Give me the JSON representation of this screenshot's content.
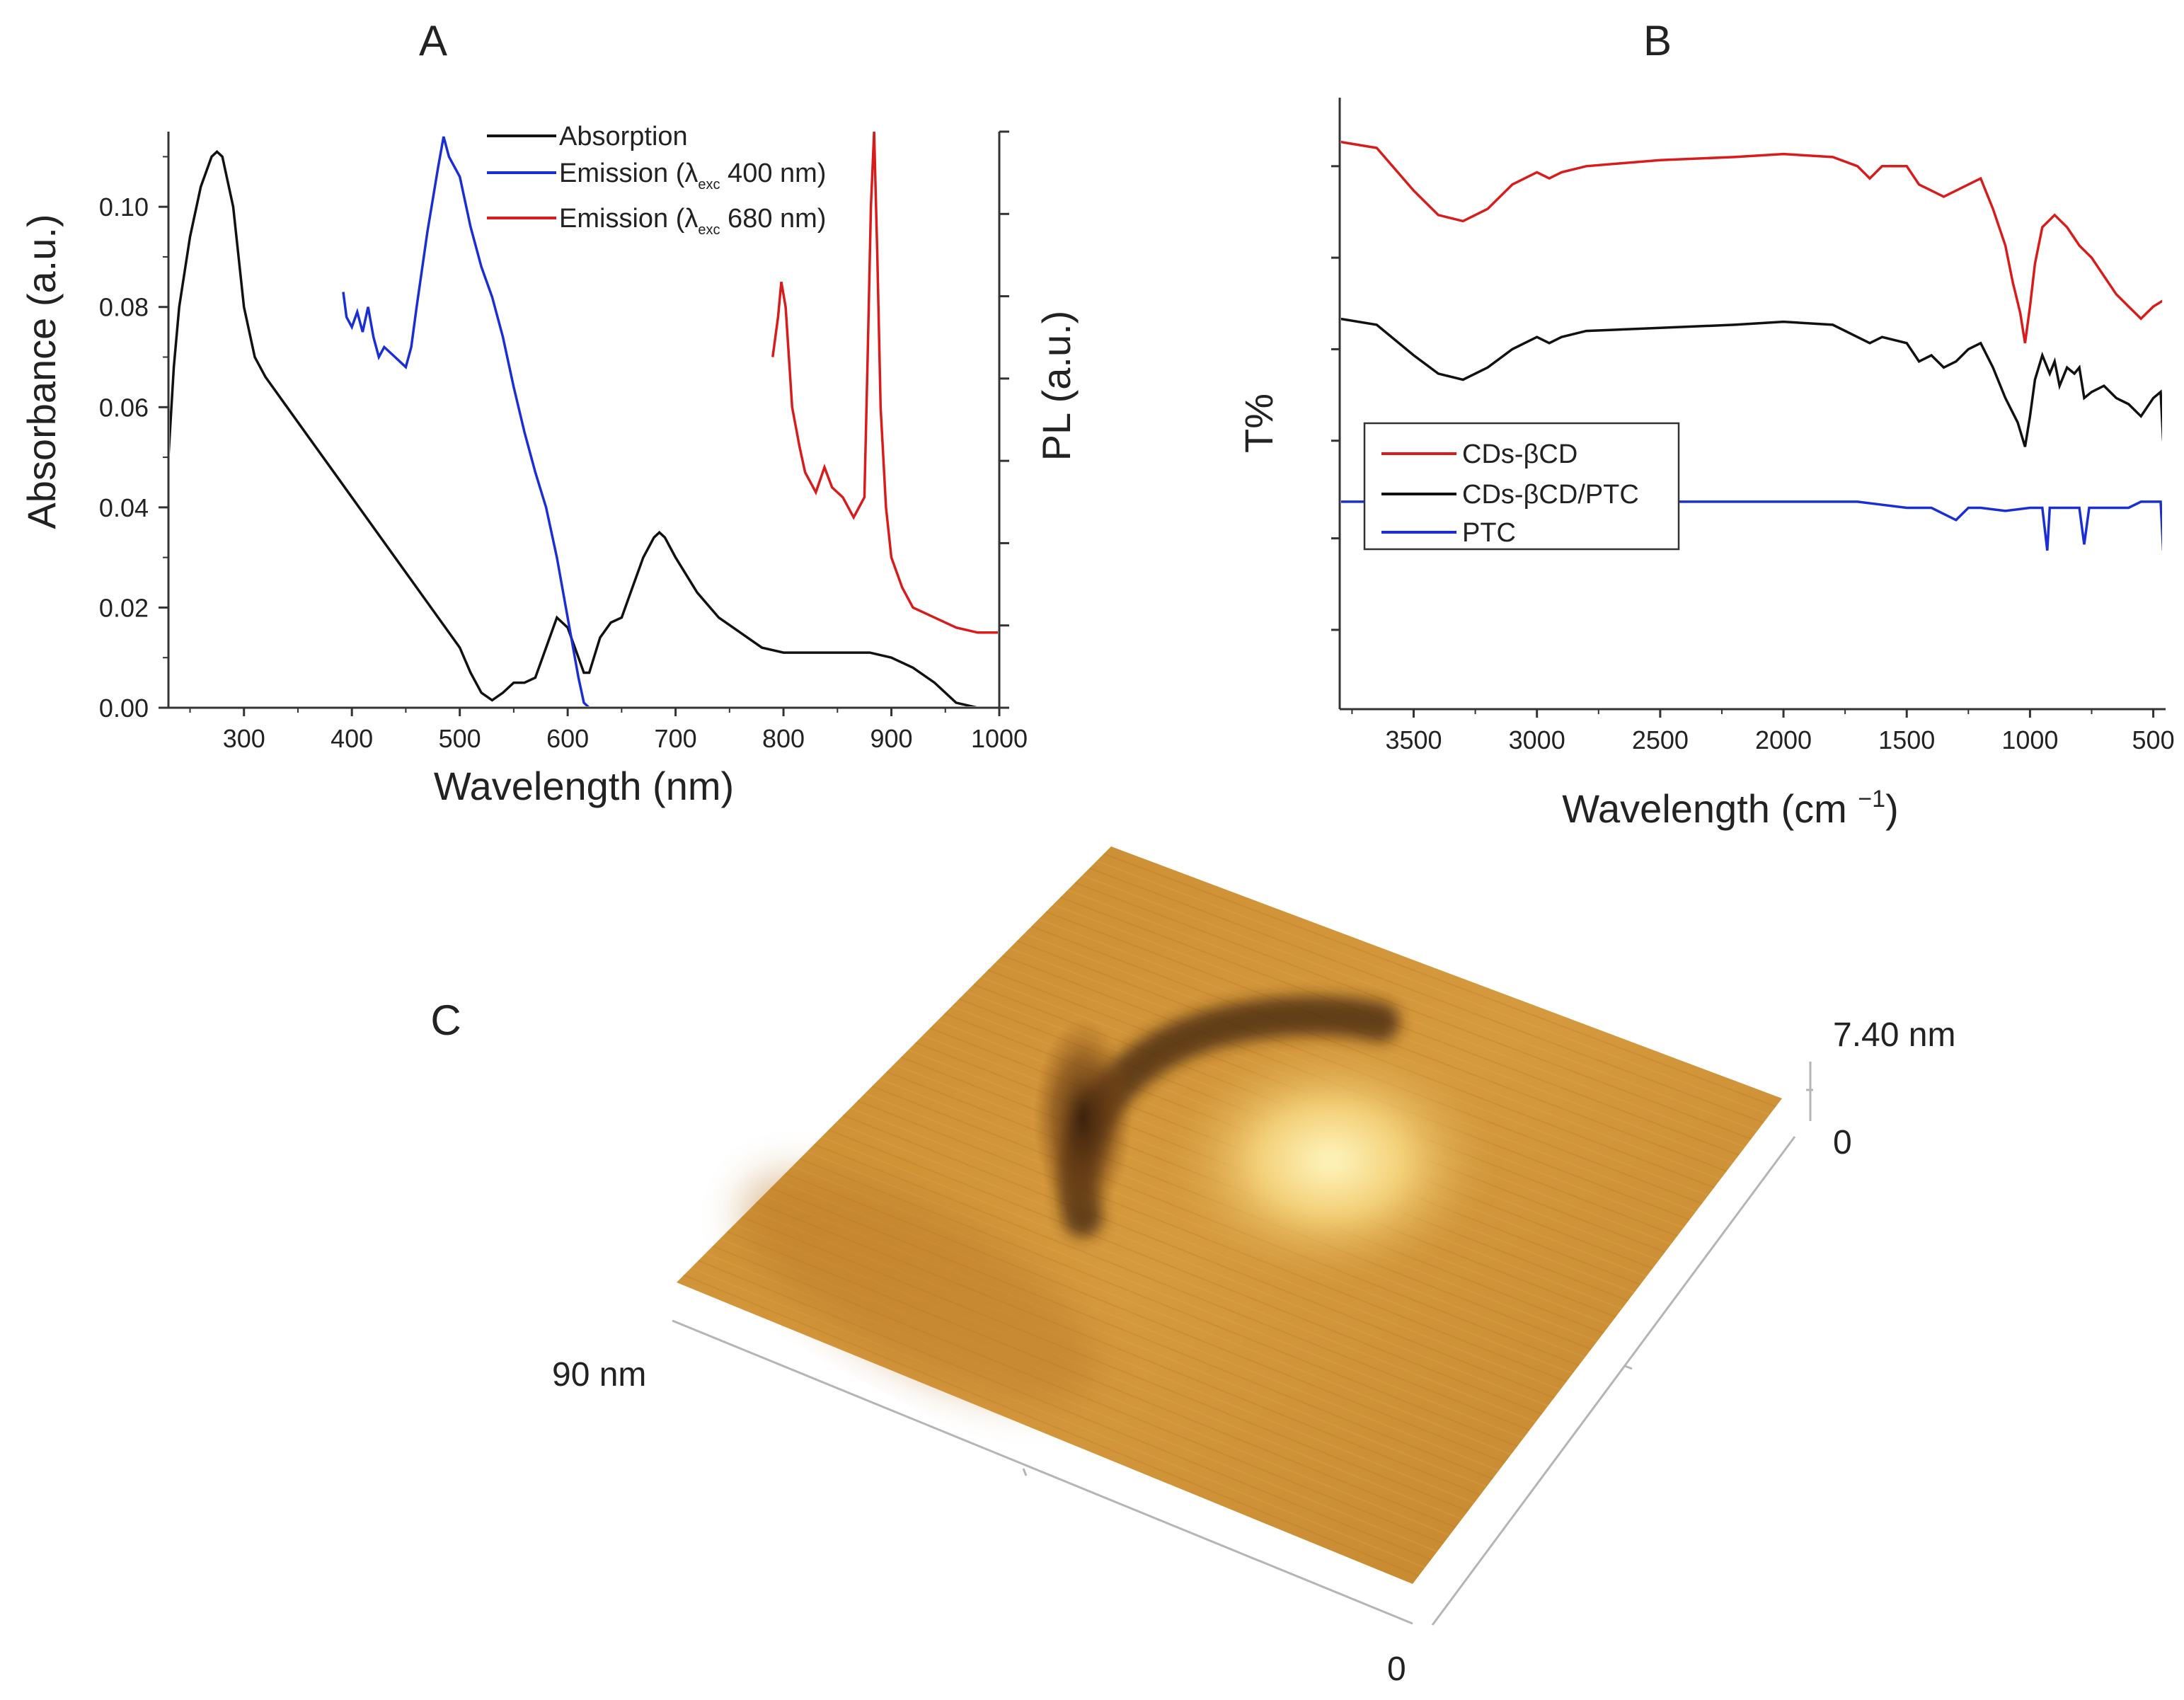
{
  "figure": {
    "panel_letters": {
      "a": "A",
      "b": "B",
      "c": "C"
    }
  },
  "chart_data": [
    {
      "id": "panel-a",
      "type": "line",
      "panel": "A",
      "xlabel": "Wavelength (nm)",
      "ylabel_left": "Absorbance (a.u.)",
      "ylabel_right": "PL (a.u.)",
      "xlim": [
        230,
        1000
      ],
      "ylim": [
        0,
        0.115
      ],
      "x_ticks": [
        300,
        400,
        500,
        600,
        700,
        800,
        900,
        1000
      ],
      "y_ticks": [
        0.0,
        0.02,
        0.04,
        0.06,
        0.08,
        0.1
      ],
      "y_tick_labels": [
        "0.00",
        "0.02",
        "0.04",
        "0.06",
        "0.08",
        "0.10"
      ],
      "grid": false,
      "legend_position": "top-center",
      "legend": {
        "absorption": "Absorption",
        "em400_prefix": "Emission (",
        "em400_suffix": " 400 nm)",
        "em680_prefix": "Emission (",
        "em680_suffix": " 680 nm)",
        "lambda": "λ",
        "lambda_sub": "exc"
      },
      "series": [
        {
          "name": "Absorption",
          "color": "#111111",
          "axis": "left",
          "points": [
            [
              230,
              0.05
            ],
            [
              235,
              0.068
            ],
            [
              240,
              0.08
            ],
            [
              250,
              0.094
            ],
            [
              260,
              0.104
            ],
            [
              270,
              0.11
            ],
            [
              275,
              0.111
            ],
            [
              280,
              0.11
            ],
            [
              290,
              0.1
            ],
            [
              300,
              0.08
            ],
            [
              310,
              0.07
            ],
            [
              320,
              0.066
            ],
            [
              340,
              0.06
            ],
            [
              360,
              0.054
            ],
            [
              380,
              0.048
            ],
            [
              400,
              0.042
            ],
            [
              420,
              0.036
            ],
            [
              440,
              0.03
            ],
            [
              460,
              0.024
            ],
            [
              480,
              0.018
            ],
            [
              500,
              0.012
            ],
            [
              510,
              0.007
            ],
            [
              520,
              0.003
            ],
            [
              530,
              0.0015
            ],
            [
              540,
              0.003
            ],
            [
              550,
              0.005
            ],
            [
              560,
              0.005
            ],
            [
              570,
              0.006
            ],
            [
              580,
              0.012
            ],
            [
              590,
              0.018
            ],
            [
              600,
              0.016
            ],
            [
              610,
              0.01
            ],
            [
              615,
              0.007
            ],
            [
              620,
              0.007
            ],
            [
              630,
              0.014
            ],
            [
              640,
              0.017
            ],
            [
              650,
              0.018
            ],
            [
              660,
              0.024
            ],
            [
              670,
              0.03
            ],
            [
              680,
              0.034
            ],
            [
              685,
              0.035
            ],
            [
              690,
              0.034
            ],
            [
              700,
              0.03
            ],
            [
              720,
              0.023
            ],
            [
              740,
              0.018
            ],
            [
              760,
              0.015
            ],
            [
              780,
              0.012
            ],
            [
              800,
              0.011
            ],
            [
              820,
              0.011
            ],
            [
              840,
              0.011
            ],
            [
              860,
              0.011
            ],
            [
              880,
              0.011
            ],
            [
              900,
              0.01
            ],
            [
              920,
              0.008
            ],
            [
              940,
              0.005
            ],
            [
              960,
              0.001
            ],
            [
              980,
              0.0
            ],
            [
              1000,
              0.0
            ]
          ]
        },
        {
          "name": "Emission (λexc 400 nm)",
          "color": "#1a2ed6",
          "axis": "right",
          "points": [
            [
              392,
              0.083
            ],
            [
              395,
              0.078
            ],
            [
              400,
              0.076
            ],
            [
              405,
              0.079
            ],
            [
              410,
              0.075
            ],
            [
              415,
              0.08
            ],
            [
              420,
              0.074
            ],
            [
              425,
              0.07
            ],
            [
              430,
              0.072
            ],
            [
              440,
              0.07
            ],
            [
              450,
              0.068
            ],
            [
              455,
              0.072
            ],
            [
              460,
              0.08
            ],
            [
              470,
              0.095
            ],
            [
              480,
              0.108
            ],
            [
              485,
              0.114
            ],
            [
              490,
              0.11
            ],
            [
              500,
              0.106
            ],
            [
              510,
              0.096
            ],
            [
              520,
              0.088
            ],
            [
              530,
              0.082
            ],
            [
              540,
              0.074
            ],
            [
              550,
              0.064
            ],
            [
              560,
              0.055
            ],
            [
              570,
              0.047
            ],
            [
              580,
              0.04
            ],
            [
              590,
              0.03
            ],
            [
              600,
              0.018
            ],
            [
              610,
              0.006
            ],
            [
              615,
              0.001
            ],
            [
              620,
              0.0
            ]
          ]
        },
        {
          "name": "Emission (λexc 680 nm)",
          "color": "#d81b1b",
          "axis": "right",
          "points": [
            [
              790,
              0.07
            ],
            [
              795,
              0.078
            ],
            [
              798,
              0.085
            ],
            [
              802,
              0.08
            ],
            [
              808,
              0.06
            ],
            [
              815,
              0.052
            ],
            [
              820,
              0.047
            ],
            [
              830,
              0.043
            ],
            [
              838,
              0.048
            ],
            [
              845,
              0.044
            ],
            [
              855,
              0.042
            ],
            [
              865,
              0.038
            ],
            [
              875,
              0.042
            ],
            [
              878,
              0.07
            ],
            [
              881,
              0.1
            ],
            [
              884,
              0.115
            ],
            [
              887,
              0.09
            ],
            [
              890,
              0.06
            ],
            [
              895,
              0.04
            ],
            [
              900,
              0.03
            ],
            [
              910,
              0.024
            ],
            [
              920,
              0.02
            ],
            [
              940,
              0.018
            ],
            [
              960,
              0.016
            ],
            [
              980,
              0.015
            ],
            [
              1000,
              0.015
            ]
          ]
        }
      ]
    },
    {
      "id": "panel-b",
      "type": "line",
      "panel": "B",
      "xlabel_main": "Wavelength (cm ",
      "xlabel_sup": "−1",
      "xlabel_end": ")",
      "ylabel": "T%",
      "xlim": [
        3800,
        450
      ],
      "x_ticks": [
        3500,
        3000,
        2500,
        2000,
        1500,
        1000,
        500
      ],
      "grid": false,
      "legend_position": "middle-left",
      "series": [
        {
          "name": "CDs-βCD",
          "color": "#d81b1b",
          "points": [
            [
              3800,
              0.93
            ],
            [
              3650,
              0.92
            ],
            [
              3500,
              0.85
            ],
            [
              3400,
              0.81
            ],
            [
              3300,
              0.8
            ],
            [
              3200,
              0.82
            ],
            [
              3100,
              0.86
            ],
            [
              3000,
              0.88
            ],
            [
              2950,
              0.87
            ],
            [
              2900,
              0.88
            ],
            [
              2800,
              0.89
            ],
            [
              2500,
              0.9
            ],
            [
              2200,
              0.905
            ],
            [
              2000,
              0.91
            ],
            [
              1800,
              0.905
            ],
            [
              1700,
              0.89
            ],
            [
              1650,
              0.87
            ],
            [
              1600,
              0.89
            ],
            [
              1500,
              0.89
            ],
            [
              1450,
              0.86
            ],
            [
              1400,
              0.85
            ],
            [
              1350,
              0.84
            ],
            [
              1300,
              0.85
            ],
            [
              1250,
              0.86
            ],
            [
              1200,
              0.87
            ],
            [
              1150,
              0.82
            ],
            [
              1100,
              0.76
            ],
            [
              1070,
              0.7
            ],
            [
              1040,
              0.65
            ],
            [
              1020,
              0.6
            ],
            [
              1000,
              0.66
            ],
            [
              980,
              0.73
            ],
            [
              950,
              0.79
            ],
            [
              900,
              0.81
            ],
            [
              850,
              0.79
            ],
            [
              800,
              0.76
            ],
            [
              750,
              0.74
            ],
            [
              700,
              0.71
            ],
            [
              650,
              0.68
            ],
            [
              600,
              0.66
            ],
            [
              550,
              0.64
            ],
            [
              500,
              0.66
            ],
            [
              460,
              0.67
            ]
          ]
        },
        {
          "name": "CDs-βCD/PTC",
          "color": "#111111",
          "points": [
            [
              3800,
              0.64
            ],
            [
              3650,
              0.63
            ],
            [
              3500,
              0.58
            ],
            [
              3400,
              0.55
            ],
            [
              3300,
              0.54
            ],
            [
              3200,
              0.56
            ],
            [
              3100,
              0.59
            ],
            [
              3000,
              0.61
            ],
            [
              2950,
              0.6
            ],
            [
              2900,
              0.61
            ],
            [
              2800,
              0.62
            ],
            [
              2500,
              0.625
            ],
            [
              2200,
              0.63
            ],
            [
              2000,
              0.635
            ],
            [
              1800,
              0.63
            ],
            [
              1700,
              0.61
            ],
            [
              1650,
              0.6
            ],
            [
              1600,
              0.61
            ],
            [
              1500,
              0.6
            ],
            [
              1450,
              0.57
            ],
            [
              1400,
              0.58
            ],
            [
              1350,
              0.56
            ],
            [
              1300,
              0.57
            ],
            [
              1250,
              0.59
            ],
            [
              1200,
              0.6
            ],
            [
              1150,
              0.56
            ],
            [
              1100,
              0.51
            ],
            [
              1050,
              0.47
            ],
            [
              1020,
              0.43
            ],
            [
              1000,
              0.48
            ],
            [
              980,
              0.54
            ],
            [
              950,
              0.58
            ],
            [
              920,
              0.55
            ],
            [
              900,
              0.57
            ],
            [
              880,
              0.53
            ],
            [
              850,
              0.56
            ],
            [
              820,
              0.55
            ],
            [
              800,
              0.56
            ],
            [
              780,
              0.51
            ],
            [
              750,
              0.52
            ],
            [
              700,
              0.53
            ],
            [
              650,
              0.51
            ],
            [
              600,
              0.5
            ],
            [
              550,
              0.48
            ],
            [
              500,
              0.51
            ],
            [
              470,
              0.52
            ],
            [
              460,
              0.44
            ]
          ]
        },
        {
          "name": "PTC",
          "color": "#1a2ed6",
          "points": [
            [
              3800,
              0.34
            ],
            [
              3500,
              0.34
            ],
            [
              3000,
              0.335
            ],
            [
              2900,
              0.34
            ],
            [
              2500,
              0.34
            ],
            [
              2000,
              0.34
            ],
            [
              1700,
              0.34
            ],
            [
              1600,
              0.335
            ],
            [
              1500,
              0.33
            ],
            [
              1400,
              0.33
            ],
            [
              1300,
              0.31
            ],
            [
              1250,
              0.33
            ],
            [
              1200,
              0.33
            ],
            [
              1100,
              0.325
            ],
            [
              1000,
              0.33
            ],
            [
              950,
              0.33
            ],
            [
              930,
              0.26
            ],
            [
              920,
              0.33
            ],
            [
              900,
              0.33
            ],
            [
              800,
              0.33
            ],
            [
              780,
              0.27
            ],
            [
              760,
              0.33
            ],
            [
              700,
              0.33
            ],
            [
              600,
              0.33
            ],
            [
              550,
              0.34
            ],
            [
              500,
              0.34
            ],
            [
              470,
              0.34
            ],
            [
              460,
              0.26
            ]
          ]
        }
      ]
    },
    {
      "id": "panel-c",
      "type": "heatmap",
      "panel": "C",
      "z_max_label": "7.40 nm",
      "z_min_label": "0",
      "x_label": "90 nm",
      "origin_label": "0",
      "colormap": [
        "#4a2a10",
        "#9a5d1c",
        "#d79a3a",
        "#f0c860",
        "#fff2b0"
      ]
    }
  ]
}
